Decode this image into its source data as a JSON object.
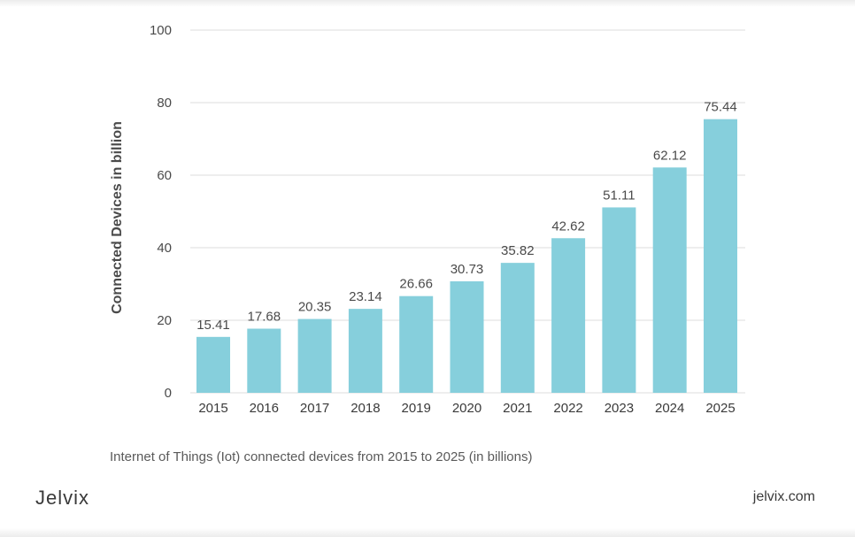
{
  "chart_data": {
    "type": "bar",
    "categories": [
      "2015",
      "2016",
      "2017",
      "2018",
      "2019",
      "2020",
      "2021",
      "2022",
      "2023",
      "2024",
      "2025"
    ],
    "values": [
      15.41,
      17.68,
      20.35,
      23.14,
      26.66,
      30.73,
      35.82,
      42.62,
      51.11,
      62.12,
      75.44
    ],
    "data_labels": [
      "15.41",
      "17.68",
      "20.35",
      "23.14",
      "26.66",
      "30.73",
      "35.82",
      "42.62",
      "51.11",
      "62.12",
      "75.44"
    ],
    "ylabel": "Connected Devices in billion",
    "ylim": [
      0,
      100
    ],
    "yticks": [
      0,
      20,
      40,
      60,
      80,
      100
    ],
    "grid": true,
    "bar_color": "#86cfdc"
  },
  "caption": "Internet of Things (Iot) connected devices from 2015 to 2025 (in billions)",
  "brand": {
    "logo": "Jelvix",
    "url": "jelvix.com"
  }
}
